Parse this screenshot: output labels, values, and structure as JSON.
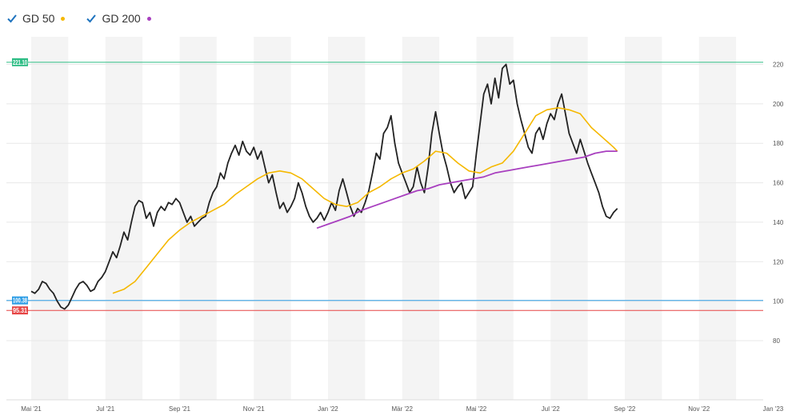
{
  "legend": [
    {
      "label": "GD 50",
      "color": "#f5b800",
      "checked": true
    },
    {
      "label": "GD 200",
      "color": "#a83fbf",
      "checked": true
    }
  ],
  "colors": {
    "price": "#222222",
    "ma50": "#f5b800",
    "ma200": "#a83fbf",
    "band": "#f4f4f4",
    "grid": "#e8e8e8",
    "checkbox": "#1e73be"
  },
  "chart_data": {
    "type": "line",
    "x_axis_labels": [
      "Mai '21",
      "Jul '21",
      "Sep '21",
      "Nov '21",
      "Jan '22",
      "Mär '22",
      "Mai '22",
      "Jul '22",
      "Sep '22",
      "Nov '22",
      "Jan '23"
    ],
    "y_ticks": [
      80,
      100,
      120,
      140,
      160,
      180,
      200,
      220
    ],
    "ylim": [
      50,
      234
    ],
    "horizontal_lines": [
      {
        "label": "221.10",
        "value": 221.1,
        "color": "#2ebd85"
      },
      {
        "label": "100.38",
        "value": 100.38,
        "color": "#2f9ee6"
      },
      {
        "label": "95.31",
        "value": 95.31,
        "color": "#e64545"
      }
    ],
    "series": [
      {
        "name": "price",
        "color": "#222222",
        "points": [
          [
            0.0,
            105
          ],
          [
            0.1,
            104
          ],
          [
            0.2,
            106
          ],
          [
            0.3,
            110
          ],
          [
            0.4,
            109
          ],
          [
            0.5,
            106
          ],
          [
            0.6,
            104
          ],
          [
            0.7,
            100
          ],
          [
            0.8,
            97
          ],
          [
            0.9,
            96
          ],
          [
            1.0,
            98
          ],
          [
            1.1,
            102
          ],
          [
            1.2,
            106
          ],
          [
            1.3,
            109
          ],
          [
            1.4,
            110
          ],
          [
            1.5,
            108
          ],
          [
            1.6,
            105
          ],
          [
            1.7,
            106
          ],
          [
            1.8,
            110
          ],
          [
            1.9,
            112
          ],
          [
            2.0,
            115
          ],
          [
            2.1,
            120
          ],
          [
            2.2,
            125
          ],
          [
            2.3,
            122
          ],
          [
            2.4,
            128
          ],
          [
            2.5,
            135
          ],
          [
            2.6,
            131
          ],
          [
            2.7,
            140
          ],
          [
            2.8,
            148
          ],
          [
            2.9,
            151
          ],
          [
            3.0,
            150
          ],
          [
            3.1,
            142
          ],
          [
            3.2,
            145
          ],
          [
            3.3,
            138
          ],
          [
            3.4,
            145
          ],
          [
            3.5,
            148
          ],
          [
            3.6,
            146
          ],
          [
            3.7,
            150
          ],
          [
            3.8,
            149
          ],
          [
            3.9,
            152
          ],
          [
            4.0,
            150
          ],
          [
            4.1,
            145
          ],
          [
            4.2,
            140
          ],
          [
            4.3,
            143
          ],
          [
            4.4,
            138
          ],
          [
            4.5,
            140
          ],
          [
            4.6,
            142
          ],
          [
            4.7,
            143
          ],
          [
            4.8,
            150
          ],
          [
            4.9,
            155
          ],
          [
            5.0,
            158
          ],
          [
            5.1,
            165
          ],
          [
            5.2,
            162
          ],
          [
            5.3,
            170
          ],
          [
            5.4,
            175
          ],
          [
            5.5,
            179
          ],
          [
            5.6,
            174
          ],
          [
            5.7,
            181
          ],
          [
            5.8,
            176
          ],
          [
            5.9,
            174
          ],
          [
            6.0,
            178
          ],
          [
            6.1,
            172
          ],
          [
            6.2,
            176
          ],
          [
            6.3,
            168
          ],
          [
            6.4,
            160
          ],
          [
            6.5,
            164
          ],
          [
            6.6,
            155
          ],
          [
            6.7,
            147
          ],
          [
            6.8,
            150
          ],
          [
            6.9,
            145
          ],
          [
            7.0,
            148
          ],
          [
            7.1,
            152
          ],
          [
            7.2,
            160
          ],
          [
            7.3,
            155
          ],
          [
            7.4,
            148
          ],
          [
            7.5,
            143
          ],
          [
            7.6,
            140
          ],
          [
            7.7,
            142
          ],
          [
            7.8,
            145
          ],
          [
            7.9,
            141
          ],
          [
            8.0,
            145
          ],
          [
            8.1,
            150
          ],
          [
            8.2,
            146
          ],
          [
            8.3,
            156
          ],
          [
            8.4,
            162
          ],
          [
            8.5,
            155
          ],
          [
            8.6,
            148
          ],
          [
            8.7,
            143
          ],
          [
            8.8,
            147
          ],
          [
            8.9,
            145
          ],
          [
            9.0,
            150
          ],
          [
            9.1,
            156
          ],
          [
            9.2,
            165
          ],
          [
            9.3,
            175
          ],
          [
            9.4,
            172
          ],
          [
            9.5,
            185
          ],
          [
            9.6,
            188
          ],
          [
            9.7,
            194
          ],
          [
            9.8,
            180
          ],
          [
            9.9,
            170
          ],
          [
            10.0,
            165
          ],
          [
            10.1,
            160
          ],
          [
            10.2,
            155
          ],
          [
            10.3,
            158
          ],
          [
            10.4,
            168
          ],
          [
            10.5,
            160
          ],
          [
            10.6,
            155
          ],
          [
            10.7,
            168
          ],
          [
            10.8,
            185
          ],
          [
            10.9,
            196
          ],
          [
            11.0,
            185
          ],
          [
            11.1,
            175
          ],
          [
            11.2,
            168
          ],
          [
            11.3,
            160
          ],
          [
            11.4,
            155
          ],
          [
            11.5,
            158
          ],
          [
            11.6,
            160
          ],
          [
            11.7,
            152
          ],
          [
            11.8,
            155
          ],
          [
            11.9,
            158
          ],
          [
            12.0,
            175
          ],
          [
            12.1,
            190
          ],
          [
            12.2,
            205
          ],
          [
            12.3,
            210
          ],
          [
            12.4,
            200
          ],
          [
            12.5,
            213
          ],
          [
            12.6,
            203
          ],
          [
            12.7,
            218
          ],
          [
            12.8,
            220
          ],
          [
            12.9,
            210
          ],
          [
            13.0,
            212
          ],
          [
            13.1,
            200
          ],
          [
            13.2,
            192
          ],
          [
            13.3,
            185
          ],
          [
            13.4,
            178
          ],
          [
            13.5,
            175
          ],
          [
            13.6,
            185
          ],
          [
            13.7,
            188
          ],
          [
            13.8,
            182
          ],
          [
            13.9,
            190
          ],
          [
            14.0,
            195
          ],
          [
            14.1,
            192
          ],
          [
            14.2,
            200
          ],
          [
            14.3,
            205
          ],
          [
            14.4,
            195
          ],
          [
            14.5,
            185
          ],
          [
            14.6,
            180
          ],
          [
            14.7,
            175
          ],
          [
            14.8,
            182
          ],
          [
            14.9,
            176
          ],
          [
            15.0,
            170
          ],
          [
            15.1,
            165
          ],
          [
            15.2,
            160
          ],
          [
            15.3,
            155
          ],
          [
            15.4,
            148
          ],
          [
            15.5,
            143
          ],
          [
            15.6,
            142
          ],
          [
            15.7,
            145
          ],
          [
            15.8,
            147
          ]
        ]
      },
      {
        "name": "ma50",
        "color": "#f5b800",
        "points": [
          [
            2.2,
            104
          ],
          [
            2.5,
            106
          ],
          [
            2.8,
            110
          ],
          [
            3.1,
            117
          ],
          [
            3.4,
            124
          ],
          [
            3.7,
            131
          ],
          [
            4.0,
            136
          ],
          [
            4.3,
            140
          ],
          [
            4.6,
            143
          ],
          [
            4.9,
            146
          ],
          [
            5.2,
            149
          ],
          [
            5.5,
            154
          ],
          [
            5.8,
            158
          ],
          [
            6.1,
            162
          ],
          [
            6.4,
            165
          ],
          [
            6.7,
            166
          ],
          [
            7.0,
            165
          ],
          [
            7.3,
            162
          ],
          [
            7.6,
            157
          ],
          [
            7.9,
            152
          ],
          [
            8.2,
            149
          ],
          [
            8.5,
            148
          ],
          [
            8.8,
            150
          ],
          [
            9.1,
            155
          ],
          [
            9.4,
            158
          ],
          [
            9.7,
            162
          ],
          [
            10.0,
            165
          ],
          [
            10.3,
            167
          ],
          [
            10.6,
            171
          ],
          [
            10.9,
            176
          ],
          [
            11.2,
            175
          ],
          [
            11.5,
            170
          ],
          [
            11.8,
            166
          ],
          [
            12.1,
            165
          ],
          [
            12.4,
            168
          ],
          [
            12.7,
            170
          ],
          [
            13.0,
            176
          ],
          [
            13.3,
            185
          ],
          [
            13.6,
            194
          ],
          [
            13.9,
            197
          ],
          [
            14.2,
            198
          ],
          [
            14.5,
            197
          ],
          [
            14.8,
            195
          ],
          [
            15.1,
            188
          ],
          [
            15.4,
            183
          ],
          [
            15.7,
            178
          ],
          [
            15.8,
            176
          ]
        ]
      },
      {
        "name": "ma200",
        "color": "#a83fbf",
        "points": [
          [
            7.7,
            137
          ],
          [
            8.0,
            139
          ],
          [
            8.3,
            141
          ],
          [
            8.6,
            143
          ],
          [
            8.9,
            146
          ],
          [
            9.2,
            148
          ],
          [
            9.5,
            150
          ],
          [
            9.8,
            152
          ],
          [
            10.1,
            154
          ],
          [
            10.4,
            156
          ],
          [
            10.7,
            157
          ],
          [
            11.0,
            159
          ],
          [
            11.3,
            160
          ],
          [
            11.6,
            161
          ],
          [
            11.9,
            162
          ],
          [
            12.2,
            163
          ],
          [
            12.5,
            165
          ],
          [
            12.8,
            166
          ],
          [
            13.1,
            167
          ],
          [
            13.4,
            168
          ],
          [
            13.7,
            169
          ],
          [
            14.0,
            170
          ],
          [
            14.3,
            171
          ],
          [
            14.6,
            172
          ],
          [
            14.9,
            173
          ],
          [
            15.2,
            175
          ],
          [
            15.5,
            176
          ],
          [
            15.8,
            176
          ]
        ]
      }
    ]
  }
}
